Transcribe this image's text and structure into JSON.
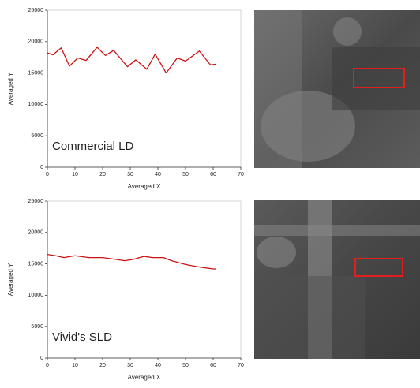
{
  "chart_data": [
    {
      "type": "line",
      "x_label": "Averaged X",
      "y_label": "Averaged Y",
      "annotation": "Commercial LD",
      "x": [
        0,
        2,
        5,
        8,
        11,
        14,
        18,
        21,
        24,
        29,
        32,
        36,
        39,
        43,
        47,
        50,
        55,
        59,
        61
      ],
      "values": [
        18200,
        17900,
        19000,
        16100,
        17400,
        17000,
        19100,
        17800,
        18600,
        16000,
        17100,
        15600,
        18000,
        15000,
        17400,
        16900,
        18500,
        16300,
        16400
      ],
      "color": "#cc1111",
      "xlim": [
        0,
        70
      ],
      "xticks": [
        0,
        10,
        20,
        30,
        40,
        50,
        60,
        70
      ],
      "ylim": [
        0,
        25000
      ],
      "yticks": [
        0,
        5000,
        10000,
        15000,
        20000,
        25000
      ]
    },
    {
      "type": "line",
      "x_label": "Averaged X",
      "y_label": "Averaged Y",
      "annotation": "Vivid's SLD",
      "x": [
        0,
        3,
        6,
        10,
        15,
        20,
        25,
        28,
        31,
        35,
        38,
        42,
        45,
        50,
        55,
        60,
        61
      ],
      "values": [
        16500,
        16300,
        16000,
        16300,
        16000,
        16000,
        15700,
        15500,
        15700,
        16200,
        16000,
        16000,
        15500,
        14900,
        14500,
        14200,
        14200
      ],
      "color": "#cc1111",
      "xlim": [
        0,
        70
      ],
      "xticks": [
        0,
        10,
        20,
        30,
        40,
        50,
        60,
        70
      ],
      "ylim": [
        0,
        25000
      ],
      "yticks": [
        0,
        5000,
        10000,
        15000,
        20000,
        25000
      ]
    }
  ]
}
